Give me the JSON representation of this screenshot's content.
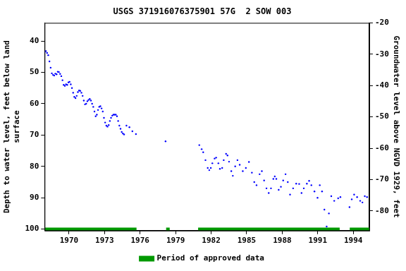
{
  "chart_data": {
    "type": "scatter",
    "title": "USGS 371916076375901 57G  2 SOW 003",
    "x_label": "",
    "y_label": [
      "Depth to water level, feet below land",
      "surface"
    ],
    "y2_label": "Groundwater level above NGVD 1929, feet",
    "xlim": [
      1967.94,
      1995.35
    ],
    "xticks": [
      1970,
      1973,
      1976,
      1979,
      1982,
      1985,
      1988,
      1991,
      1994
    ],
    "ylim": [
      100.5,
      34.2
    ],
    "yticks": [
      40,
      50,
      60,
      70,
      80,
      90,
      100
    ],
    "y2lim": [
      -86.3,
      -20
    ],
    "y2ticks": [
      -80,
      -70,
      -60,
      -50,
      -40,
      -30,
      -20
    ],
    "grid": false,
    "legend": "bottom",
    "series": [
      {
        "color": "#0000ff",
        "marker": "point",
        "line_style": "none",
        "x": [
          1967.95,
          1968.05,
          1968.15,
          1968.25,
          1968.35,
          1968.45,
          1968.55,
          1968.65,
          1968.75,
          1968.85,
          1968.95,
          1969.05,
          1969.15,
          1969.25,
          1969.35,
          1969.45,
          1969.55,
          1969.65,
          1969.75,
          1969.85,
          1969.95,
          1970.05,
          1970.15,
          1970.25,
          1970.35,
          1970.45,
          1970.55,
          1970.65,
          1970.75,
          1970.85,
          1970.95,
          1971.05,
          1971.15,
          1971.25,
          1971.35,
          1971.45,
          1971.55,
          1971.65,
          1971.75,
          1971.85,
          1971.95,
          1972.05,
          1972.15,
          1972.25,
          1972.35,
          1972.45,
          1972.55,
          1972.65,
          1972.75,
          1972.85,
          1972.95,
          1973.05,
          1973.15,
          1973.25,
          1973.35,
          1973.45,
          1973.55,
          1973.65,
          1973.75,
          1973.85,
          1973.95,
          1974.05,
          1974.15,
          1974.25,
          1974.35,
          1974.45,
          1974.55,
          1974.65,
          1974.85,
          1975.1,
          1975.35,
          1975.65,
          1978.15,
          1981.0,
          1981.2,
          1981.33,
          1981.52,
          1981.71,
          1981.84,
          1981.97,
          1982.1,
          1982.29,
          1982.42,
          1982.61,
          1982.74,
          1982.93,
          1983.06,
          1983.26,
          1983.38,
          1983.51,
          1983.7,
          1983.83,
          1984.03,
          1984.22,
          1984.41,
          1984.67,
          1984.93,
          1985.19,
          1985.44,
          1985.64,
          1985.83,
          1986.09,
          1986.28,
          1986.47,
          1986.67,
          1986.86,
          1987.05,
          1987.25,
          1987.37,
          1987.5,
          1987.7,
          1987.89,
          1988.08,
          1988.28,
          1988.47,
          1988.66,
          1988.92,
          1989.18,
          1989.43,
          1989.63,
          1989.82,
          1990.08,
          1990.27,
          1990.46,
          1990.72,
          1990.98,
          1991.17,
          1991.36,
          1991.56,
          1991.75,
          1991.94,
          1992.14,
          1992.39,
          1992.72,
          1992.91,
          1993.68,
          1993.87,
          1994.07,
          1994.32,
          1994.58,
          1994.77,
          1994.97,
          1995.16
        ],
        "values": [
          43.5,
          43.2,
          43.8,
          44.5,
          46.5,
          48.5,
          50.3,
          50.8,
          51.0,
          50.4,
          50.6,
          49.8,
          49.9,
          50.5,
          51.2,
          52.5,
          54.0,
          54.3,
          53.8,
          54.0,
          53.2,
          53.0,
          53.8,
          55.0,
          56.5,
          57.8,
          58.2,
          57.5,
          56.3,
          55.8,
          55.9,
          56.5,
          57.5,
          59.0,
          60.2,
          60.0,
          59.2,
          58.8,
          58.5,
          59.0,
          60.0,
          61.0,
          62.5,
          64.0,
          63.5,
          62.0,
          61.0,
          60.8,
          61.5,
          62.5,
          64.5,
          66.0,
          67.0,
          67.3,
          66.8,
          65.5,
          64.5,
          63.8,
          63.5,
          63.5,
          63.5,
          64.0,
          65.5,
          67.0,
          68.0,
          69.0,
          69.5,
          69.8,
          67.0,
          67.5,
          68.8,
          69.7,
          72.0,
          73.2,
          74.5,
          75.5,
          78.0,
          80.5,
          81.2,
          80.5,
          79.0,
          77.5,
          77.2,
          79.0,
          80.8,
          80.5,
          78.0,
          76.0,
          76.5,
          78.5,
          81.5,
          83.0,
          80.0,
          78.0,
          79.5,
          81.5,
          80.5,
          78.6,
          82.0,
          85.0,
          86.0,
          82.5,
          81.5,
          84.5,
          87.0,
          88.5,
          87.0,
          84.0,
          83.2,
          84.0,
          87.5,
          86.5,
          84.5,
          82.5,
          85.0,
          89.0,
          87.0,
          85.5,
          85.6,
          88.5,
          87.0,
          85.5,
          84.6,
          86.0,
          88.0,
          90.0,
          86.0,
          88.0,
          93.8,
          99.2,
          95.0,
          89.5,
          91.0,
          90.2,
          89.8,
          93.0,
          90.5,
          89.0,
          89.8,
          91.0,
          91.5,
          89.5,
          89.8
        ]
      },
      {
        "name": "Period of approved data",
        "color": "#009900",
        "marker": "none",
        "line_style": "solid",
        "x": [
          1967.94,
          1975.7,
          1975.8,
          1978.2,
          1978.5,
          1978.6,
          1980.9,
          1992.85,
          1993.0,
          1993.7,
          1995.35
        ],
        "values": [
          100,
          100,
          null,
          100,
          100,
          null,
          100,
          100,
          null,
          100,
          100
        ]
      }
    ]
  }
}
